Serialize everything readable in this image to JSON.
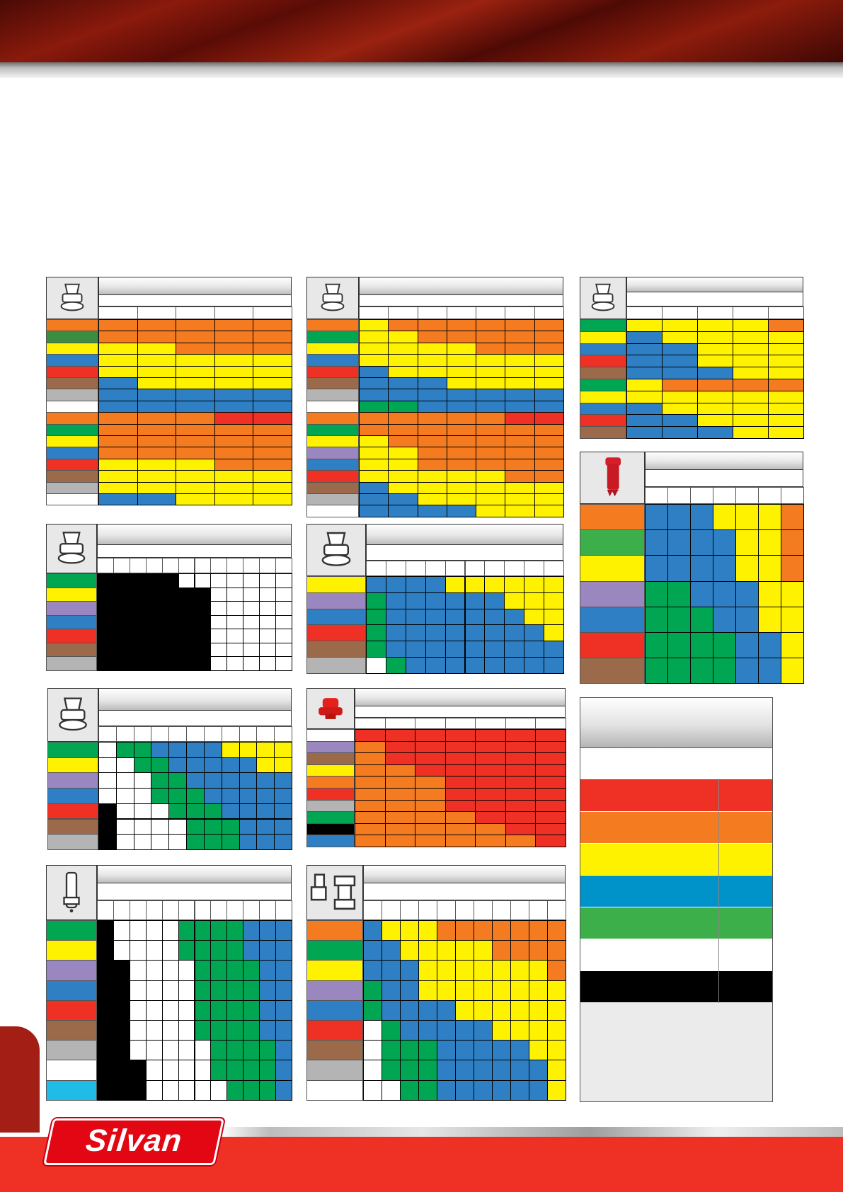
{
  "brand": {
    "logo_text": "Silvan"
  },
  "palette": {
    "O": "#f47b20",
    "Y": "#fff200",
    "B": "#2e7fc4",
    "G": "#00a651",
    "R": "#ee3124",
    "K": "#000000",
    "W": "#ffffff",
    "LG": "#3b8d3f",
    "GR": "#00a651",
    "GN": "#3daf4a",
    "YE": "#fff200",
    "BL": "#2e7fc4",
    "RE": "#ee3124",
    "BR": "#9a6a4a",
    "GY": "#b4b4b4",
    "WH": "#ffffff",
    "OR": "#f47b20",
    "PU": "#9b87bf",
    "CY": "#1fbce8",
    "BK": "#000000"
  },
  "tables": [
    {
      "id": "t1",
      "icon": "flat-fan-nozzle-icon",
      "side": [
        "OR",
        "LG",
        "YE",
        "BL",
        "RE",
        "BR",
        "GY",
        "WH",
        "OR",
        "GR",
        "YE",
        "BL",
        "RE",
        "BR",
        "GY",
        "WH"
      ],
      "rows": [
        [
          "O",
          "O",
          "O",
          "O",
          "O"
        ],
        [
          "O",
          "O",
          "O",
          "O",
          "O"
        ],
        [
          "Y",
          "Y",
          "O",
          "O",
          "O"
        ],
        [
          "Y",
          "Y",
          "Y",
          "Y",
          "Y"
        ],
        [
          "Y",
          "Y",
          "Y",
          "Y",
          "Y"
        ],
        [
          "B",
          "Y",
          "Y",
          "Y",
          "Y"
        ],
        [
          "B",
          "B",
          "B",
          "B",
          "B"
        ],
        [
          "B",
          "B",
          "B",
          "B",
          "B"
        ],
        [
          "O",
          "O",
          "O",
          "R",
          "R"
        ],
        [
          "O",
          "O",
          "O",
          "O",
          "O"
        ],
        [
          "O",
          "O",
          "O",
          "O",
          "O"
        ],
        [
          "O",
          "O",
          "O",
          "O",
          "O"
        ],
        [
          "Y",
          "Y",
          "Y",
          "O",
          "O"
        ],
        [
          "Y",
          "Y",
          "Y",
          "Y",
          "Y"
        ],
        [
          "Y",
          "Y",
          "Y",
          "Y",
          "Y"
        ],
        [
          "B",
          "B",
          "Y",
          "Y",
          "Y"
        ]
      ]
    },
    {
      "id": "t2",
      "icon": "flat-fan-nozzle-icon",
      "side": [
        "OR",
        "GR",
        "YE",
        "BL",
        "RE",
        "BR",
        "GY",
        "WH",
        "OR",
        "GR",
        "YE",
        "PU",
        "BL",
        "RE",
        "BR",
        "GY",
        "WH"
      ],
      "rows": [
        [
          "Y",
          "O",
          "O",
          "O",
          "O",
          "O",
          "O"
        ],
        [
          "Y",
          "Y",
          "O",
          "O",
          "O",
          "O",
          "O"
        ],
        [
          "Y",
          "Y",
          "Y",
          "Y",
          "O",
          "O",
          "O"
        ],
        [
          "Y",
          "Y",
          "Y",
          "Y",
          "Y",
          "Y",
          "Y"
        ],
        [
          "B",
          "Y",
          "Y",
          "Y",
          "Y",
          "Y",
          "Y"
        ],
        [
          "B",
          "B",
          "B",
          "Y",
          "Y",
          "Y",
          "Y"
        ],
        [
          "B",
          "B",
          "B",
          "B",
          "B",
          "B",
          "B"
        ],
        [
          "G",
          "G",
          "B",
          "B",
          "B",
          "B",
          "B"
        ],
        [
          "O",
          "O",
          "O",
          "O",
          "O",
          "R",
          "R"
        ],
        [
          "O",
          "O",
          "O",
          "O",
          "O",
          "O",
          "O"
        ],
        [
          "Y",
          "O",
          "O",
          "O",
          "O",
          "O",
          "O"
        ],
        [
          "Y",
          "Y",
          "O",
          "O",
          "O",
          "O",
          "O"
        ],
        [
          "Y",
          "Y",
          "O",
          "O",
          "O",
          "O",
          "O"
        ],
        [
          "Y",
          "Y",
          "Y",
          "Y",
          "Y",
          "O",
          "O"
        ],
        [
          "B",
          "Y",
          "Y",
          "Y",
          "Y",
          "Y",
          "Y"
        ],
        [
          "B",
          "B",
          "Y",
          "Y",
          "Y",
          "Y",
          "Y"
        ],
        [
          "B",
          "B",
          "B",
          "B",
          "Y",
          "Y",
          "Y"
        ]
      ]
    },
    {
      "id": "t3",
      "icon": "flat-fan-nozzle-icon",
      "side": [
        "GR",
        "YE",
        "BL",
        "RE",
        "BR",
        "GR",
        "YE",
        "BL",
        "RE",
        "BR"
      ],
      "rows": [
        [
          "Y",
          "Y",
          "Y",
          "Y",
          "O"
        ],
        [
          "B",
          "Y",
          "Y",
          "Y",
          "Y"
        ],
        [
          "B",
          "B",
          "Y",
          "Y",
          "Y"
        ],
        [
          "B",
          "B",
          "Y",
          "Y",
          "Y"
        ],
        [
          "B",
          "B",
          "B",
          "Y",
          "Y"
        ],
        [
          "Y",
          "O",
          "O",
          "O",
          "O"
        ],
        [
          "Y",
          "Y",
          "Y",
          "Y",
          "Y"
        ],
        [
          "B",
          "Y",
          "Y",
          "Y",
          "Y"
        ],
        [
          "B",
          "B",
          "Y",
          "Y",
          "Y"
        ],
        [
          "B",
          "B",
          "B",
          "Y",
          "Y"
        ]
      ]
    },
    {
      "id": "t4",
      "icon": "red-injector-nozzle-icon",
      "side": [
        "OR",
        "GN",
        "YE",
        "PU",
        "BL",
        "RE",
        "BR"
      ],
      "rows": [
        [
          "B",
          "B",
          "B",
          "Y",
          "Y",
          "Y",
          "O"
        ],
        [
          "B",
          "B",
          "B",
          "B",
          "Y",
          "Y",
          "O"
        ],
        [
          "B",
          "B",
          "B",
          "B",
          "Y",
          "Y",
          "O"
        ],
        [
          "G",
          "G",
          "B",
          "B",
          "B",
          "Y",
          "Y"
        ],
        [
          "G",
          "G",
          "G",
          "B",
          "B",
          "Y",
          "Y"
        ],
        [
          "G",
          "G",
          "G",
          "G",
          "B",
          "B",
          "Y"
        ],
        [
          "G",
          "G",
          "G",
          "G",
          "B",
          "B",
          "Y"
        ]
      ]
    },
    {
      "id": "t5",
      "icon": "air-induction-nozzle-icon",
      "side": [
        "GR",
        "YE",
        "PU",
        "BL",
        "RE",
        "BR",
        "GY"
      ],
      "rows": [
        [
          "K",
          "K",
          "K",
          "K",
          "K",
          "W",
          "W",
          "W",
          "W",
          "W",
          "W",
          "W"
        ],
        [
          "K",
          "K",
          "K",
          "K",
          "K",
          "K",
          "K",
          "W",
          "W",
          "W",
          "W",
          "W"
        ],
        [
          "K",
          "K",
          "K",
          "K",
          "K",
          "K",
          "K",
          "W",
          "W",
          "W",
          "W",
          "W"
        ],
        [
          "K",
          "K",
          "K",
          "K",
          "K",
          "K",
          "K",
          "W",
          "W",
          "W",
          "W",
          "W"
        ],
        [
          "K",
          "K",
          "K",
          "K",
          "K",
          "K",
          "K",
          "W",
          "W",
          "W",
          "W",
          "W"
        ],
        [
          "K",
          "K",
          "K",
          "K",
          "K",
          "K",
          "K",
          "W",
          "W",
          "W",
          "W",
          "W"
        ],
        [
          "K",
          "K",
          "K",
          "K",
          "K",
          "K",
          "K",
          "W",
          "W",
          "W",
          "W",
          "W"
        ]
      ]
    },
    {
      "id": "t6",
      "icon": "twin-fan-nozzle-icon",
      "side": [
        "YE",
        "PU",
        "BL",
        "RE",
        "BR",
        "GY"
      ],
      "rows": [
        [
          "B",
          "B",
          "B",
          "B",
          "Y",
          "Y",
          "Y",
          "Y",
          "Y",
          "Y"
        ],
        [
          "G",
          "B",
          "B",
          "B",
          "B",
          "B",
          "B",
          "Y",
          "Y",
          "Y"
        ],
        [
          "G",
          "B",
          "B",
          "B",
          "B",
          "B",
          "B",
          "B",
          "Y",
          "Y"
        ],
        [
          "G",
          "B",
          "B",
          "B",
          "B",
          "B",
          "B",
          "B",
          "B",
          "Y"
        ],
        [
          "G",
          "B",
          "B",
          "B",
          "B",
          "B",
          "B",
          "B",
          "B",
          "B"
        ],
        [
          "W",
          "G",
          "B",
          "B",
          "B",
          "B",
          "B",
          "B",
          "B",
          "B"
        ]
      ]
    },
    {
      "id": "t7",
      "icon": "air-injector-nozzle-icon",
      "side": [
        "GR",
        "YE",
        "PU",
        "BL",
        "RE",
        "BR",
        "GY"
      ],
      "rows": [
        [
          "W",
          "G",
          "G",
          "B",
          "B",
          "B",
          "B",
          "Y",
          "Y",
          "Y",
          "Y"
        ],
        [
          "W",
          "W",
          "G",
          "G",
          "B",
          "B",
          "B",
          "B",
          "B",
          "Y",
          "Y"
        ],
        [
          "W",
          "W",
          "W",
          "G",
          "G",
          "B",
          "B",
          "B",
          "B",
          "B",
          "B"
        ],
        [
          "W",
          "W",
          "W",
          "G",
          "G",
          "G",
          "B",
          "B",
          "B",
          "B",
          "B"
        ],
        [
          "K",
          "W",
          "W",
          "W",
          "G",
          "G",
          "G",
          "B",
          "B",
          "B",
          "B"
        ],
        [
          "K",
          "W",
          "W",
          "W",
          "W",
          "G",
          "G",
          "G",
          "B",
          "B",
          "B"
        ],
        [
          "K",
          "W",
          "W",
          "W",
          "W",
          "G",
          "G",
          "G",
          "B",
          "B",
          "B"
        ]
      ]
    },
    {
      "id": "t8",
      "icon": "red-cap-nozzle-icon",
      "side": [
        "WH",
        "PU",
        "BR",
        "YE",
        "OR",
        "RE",
        "GY",
        "GR",
        "BK",
        "BL"
      ],
      "rows": [
        [
          "R",
          "R",
          "R",
          "R",
          "R",
          "R",
          "R"
        ],
        [
          "O",
          "R",
          "R",
          "R",
          "R",
          "R",
          "R"
        ],
        [
          "O",
          "R",
          "R",
          "R",
          "R",
          "R",
          "R"
        ],
        [
          "O",
          "O",
          "R",
          "R",
          "R",
          "R",
          "R"
        ],
        [
          "O",
          "O",
          "O",
          "R",
          "R",
          "R",
          "R"
        ],
        [
          "O",
          "O",
          "O",
          "R",
          "R",
          "R",
          "R"
        ],
        [
          "O",
          "O",
          "O",
          "R",
          "R",
          "R",
          "R"
        ],
        [
          "O",
          "O",
          "O",
          "O",
          "R",
          "R",
          "R"
        ],
        [
          "O",
          "O",
          "O",
          "O",
          "O",
          "R",
          "R"
        ],
        [
          "O",
          "O",
          "O",
          "O",
          "O",
          "O",
          "R"
        ]
      ]
    },
    {
      "id": "t9",
      "icon": "long-nozzle-icon",
      "side": [
        "GR",
        "YE",
        "PU",
        "BL",
        "RE",
        "BR",
        "GY",
        "WH",
        "CY"
      ],
      "rows": [
        [
          "K",
          "W",
          "W",
          "W",
          "W",
          "G",
          "G",
          "G",
          "G",
          "B",
          "B",
          "B"
        ],
        [
          "K",
          "W",
          "W",
          "W",
          "W",
          "G",
          "G",
          "G",
          "G",
          "B",
          "B",
          "B"
        ],
        [
          "K",
          "K",
          "W",
          "W",
          "W",
          "W",
          "G",
          "G",
          "G",
          "G",
          "B",
          "B"
        ],
        [
          "K",
          "K",
          "W",
          "W",
          "W",
          "W",
          "G",
          "G",
          "G",
          "G",
          "B",
          "B"
        ],
        [
          "K",
          "K",
          "W",
          "W",
          "W",
          "W",
          "G",
          "G",
          "G",
          "G",
          "B",
          "B"
        ],
        [
          "K",
          "K",
          "W",
          "W",
          "W",
          "W",
          "G",
          "G",
          "G",
          "G",
          "B",
          "B"
        ],
        [
          "K",
          "K",
          "W",
          "W",
          "W",
          "W",
          "W",
          "G",
          "G",
          "G",
          "G",
          "B"
        ],
        [
          "K",
          "K",
          "K",
          "W",
          "W",
          "W",
          "W",
          "G",
          "G",
          "G",
          "G",
          "B"
        ],
        [
          "K",
          "K",
          "K",
          "W",
          "W",
          "W",
          "W",
          "W",
          "G",
          "G",
          "G",
          "B"
        ]
      ]
    },
    {
      "id": "t10",
      "icon": "twin-cap-nozzle-icon",
      "side": [
        "OR",
        "GR",
        "YE",
        "PU",
        "BL",
        "RE",
        "BR",
        "GY",
        "WH"
      ],
      "rows": [
        [
          "B",
          "Y",
          "Y",
          "Y",
          "O",
          "O",
          "O",
          "O",
          "O",
          "O",
          "O"
        ],
        [
          "B",
          "B",
          "Y",
          "Y",
          "Y",
          "Y",
          "Y",
          "O",
          "O",
          "O",
          "O"
        ],
        [
          "B",
          "B",
          "B",
          "Y",
          "Y",
          "Y",
          "Y",
          "Y",
          "Y",
          "Y",
          "O"
        ],
        [
          "G",
          "B",
          "B",
          "Y",
          "Y",
          "Y",
          "Y",
          "Y",
          "Y",
          "Y",
          "Y"
        ],
        [
          "G",
          "B",
          "B",
          "B",
          "B",
          "Y",
          "Y",
          "Y",
          "Y",
          "Y",
          "Y"
        ],
        [
          "W",
          "G",
          "B",
          "B",
          "B",
          "B",
          "B",
          "Y",
          "Y",
          "Y",
          "Y"
        ],
        [
          "W",
          "G",
          "G",
          "G",
          "B",
          "B",
          "B",
          "B",
          "B",
          "Y",
          "Y"
        ],
        [
          "W",
          "G",
          "G",
          "G",
          "B",
          "B",
          "B",
          "B",
          "B",
          "B",
          "Y"
        ],
        [
          "W",
          "W",
          "G",
          "G",
          "B",
          "B",
          "B",
          "B",
          "B",
          "B",
          "Y"
        ]
      ]
    }
  ],
  "legend": {
    "swatches": [
      "R",
      "O",
      "Y",
      "B",
      "G",
      "W",
      "K"
    ],
    "swatch_colors": {
      "R": "#ee3124",
      "O": "#f47b20",
      "Y": "#fff200",
      "B": "#0093c9",
      "G": "#3daf4a",
      "W": "#ffffff",
      "K": "#000000"
    }
  }
}
